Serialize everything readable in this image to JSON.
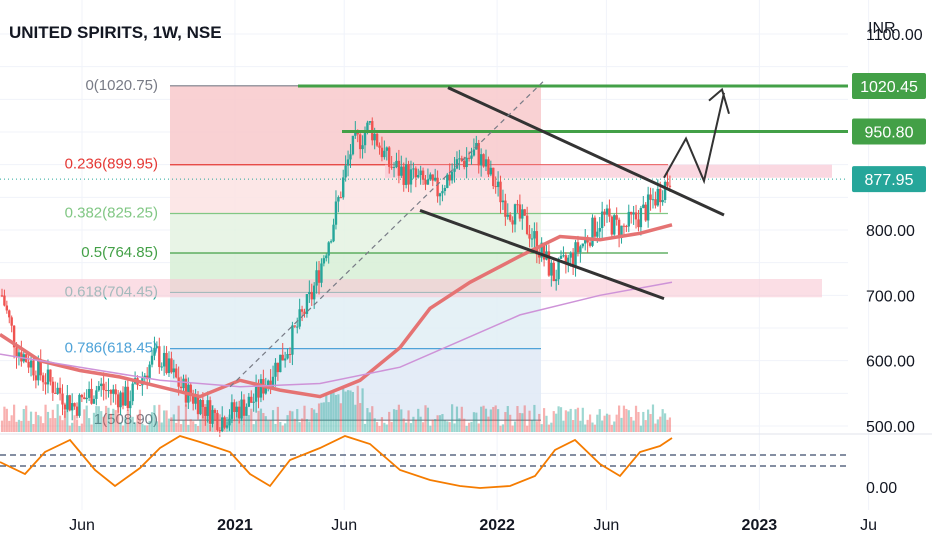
{
  "header": {
    "title": "UNITED SPIRITS, 1W, NSE"
  },
  "chart_data": {
    "type": "candlestick",
    "title": "UNITED SPIRITS, 1W, NSE",
    "currency": "INR",
    "y_axis": {
      "ticks": [
        {
          "value": 1100,
          "label": "1100.00"
        },
        {
          "value": 800,
          "label": "800.00"
        },
        {
          "value": 700,
          "label": "700.00"
        },
        {
          "value": 600,
          "label": "600.00"
        },
        {
          "value": 500,
          "label": "500.00"
        }
      ]
    },
    "x_axis": {
      "ticks": [
        {
          "date": "2020-06",
          "label": "Jun"
        },
        {
          "date": "2021-01",
          "label": "2021"
        },
        {
          "date": "2021-06",
          "label": "Jun"
        },
        {
          "date": "2022-01",
          "label": "2022"
        },
        {
          "date": "2022-06",
          "label": "Jun"
        },
        {
          "date": "2023-01",
          "label": "2023"
        },
        {
          "date": "2023-06",
          "label": "Ju"
        }
      ]
    },
    "price_tags": [
      {
        "value": 1020.45,
        "label": "1020.45",
        "color": "#43a047"
      },
      {
        "value": 950.8,
        "label": "950.80",
        "color": "#43a047"
      },
      {
        "value": 877.95,
        "label": "877.95",
        "color": "#26a69a"
      }
    ],
    "fibonacci": [
      {
        "ratio": 0,
        "price": 1020.75,
        "label": "0(1020.75)",
        "color": "#787b86"
      },
      {
        "ratio": 0.236,
        "price": 899.95,
        "label": "0.236(899.95)",
        "color": "#e53935"
      },
      {
        "ratio": 0.382,
        "price": 825.25,
        "label": "0.382(825.25)",
        "color": "#81c784"
      },
      {
        "ratio": 0.5,
        "price": 764.85,
        "label": "0.5(764.85)",
        "color": "#43a047"
      },
      {
        "ratio": 0.618,
        "price": 704.45,
        "label": "0.618(704.45)",
        "color": "#26a69a"
      },
      {
        "ratio": 0.786,
        "price": 618.45,
        "label": "0.786(618.45)",
        "color": "#4fa3d8"
      },
      {
        "ratio": 1,
        "price": 508.9,
        "label": "1(508.90)",
        "color": "#787b86"
      }
    ],
    "oscillator": {
      "ticks": [
        {
          "value": 0,
          "label": "0.00"
        }
      ]
    },
    "colors": {
      "up": "#26a69a",
      "down": "#ef5350",
      "ma_fast": "#e57373",
      "ma_slow": "#ce93d8",
      "resistance": "#43a047",
      "trendline": "#333333",
      "oscillator": "#f57c00"
    },
    "grid": true
  }
}
